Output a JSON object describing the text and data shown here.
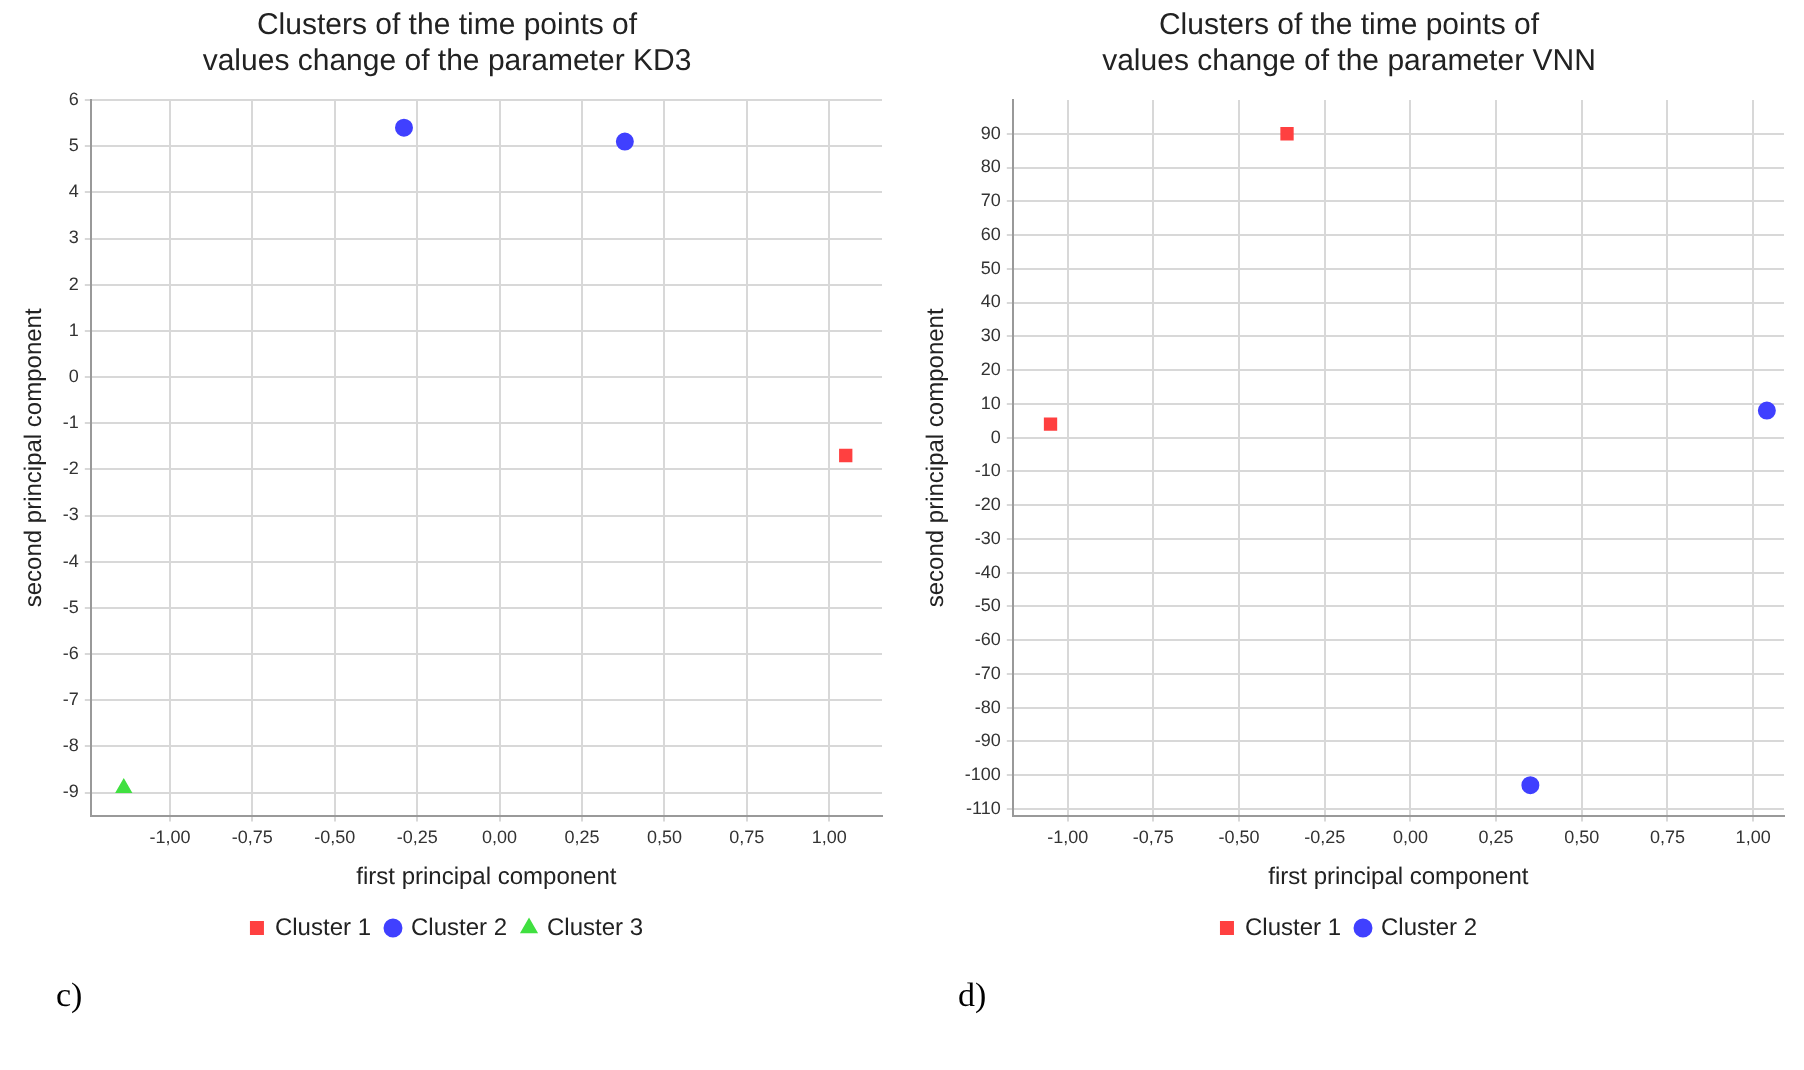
{
  "chart_data": [
    {
      "type": "scatter",
      "title": "Clusters of the time points of\nvalues change of the parameter KD3",
      "xlabel": "first principal component",
      "ylabel": "second principal component",
      "series": [
        {
          "name": "Cluster 1",
          "color": "#ff4040",
          "marker": "square",
          "x": [
            1.05
          ],
          "values": [
            -1.7
          ]
        },
        {
          "name": "Cluster 2",
          "color": "#4040ff",
          "marker": "circle",
          "x": [
            -0.29,
            0.38
          ],
          "values": [
            5.4,
            5.1
          ]
        },
        {
          "name": "Cluster 3",
          "color": "#40e040",
          "marker": "triangle",
          "x": [
            -1.14
          ],
          "values": [
            -8.9
          ]
        }
      ],
      "xlim": [
        -1.24,
        1.16
      ],
      "ylim": [
        -9.5,
        6
      ],
      "xticks": [
        {
          "value": -1,
          "label": "-1,00"
        },
        {
          "value": -0.75,
          "label": "-0,75"
        },
        {
          "value": -0.5,
          "label": "-0,50"
        },
        {
          "value": -0.25,
          "label": "-0,25"
        },
        {
          "value": 0,
          "label": "0,00"
        },
        {
          "value": 0.25,
          "label": "0,25"
        },
        {
          "value": 0.5,
          "label": "0,50"
        },
        {
          "value": 0.75,
          "label": "0,75"
        },
        {
          "value": 1,
          "label": "1,00"
        }
      ],
      "yticks": [
        -9,
        -8,
        -7,
        -6,
        -5,
        -4,
        -3,
        -2,
        -1,
        0,
        1,
        2,
        3,
        4,
        5,
        6
      ],
      "grid": true,
      "legend": "bottom",
      "annotations": [
        "c)"
      ]
    },
    {
      "type": "scatter",
      "title": "Clusters of the time points of\nvalues change of the parameter VNN",
      "xlabel": "first principal component",
      "ylabel": "second principal component",
      "series": [
        {
          "name": "Cluster 1",
          "color": "#ff4040",
          "marker": "square",
          "x": [
            -1.05,
            -0.36
          ],
          "values": [
            4,
            90
          ]
        },
        {
          "name": "Cluster 2",
          "color": "#4040ff",
          "marker": "circle",
          "x": [
            1.04,
            0.35
          ],
          "values": [
            8,
            -103
          ]
        }
      ],
      "xlim": [
        -1.16,
        1.09
      ],
      "ylim": [
        -112,
        100
      ],
      "xticks": [
        {
          "value": -1,
          "label": "-1,00"
        },
        {
          "value": -0.75,
          "label": "-0,75"
        },
        {
          "value": -0.5,
          "label": "-0,50"
        },
        {
          "value": -0.25,
          "label": "-0,25"
        },
        {
          "value": 0,
          "label": "0,00"
        },
        {
          "value": 0.25,
          "label": "0,25"
        },
        {
          "value": 0.5,
          "label": "0,50"
        },
        {
          "value": 0.75,
          "label": "0,75"
        },
        {
          "value": 1,
          "label": "1,00"
        }
      ],
      "yticks": [
        -110,
        -100,
        -90,
        -80,
        -70,
        -60,
        -50,
        -40,
        -30,
        -20,
        -10,
        0,
        10,
        20,
        30,
        40,
        50,
        60,
        70,
        80,
        90
      ],
      "grid": true,
      "legend": "bottom",
      "annotations": [
        "d)"
      ]
    }
  ]
}
